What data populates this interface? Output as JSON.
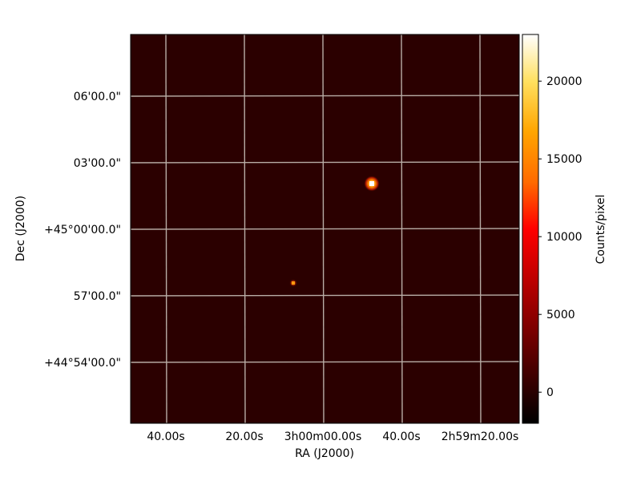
{
  "chart_data": {
    "type": "heatmap",
    "title": "",
    "xlabel": "RA (J2000)",
    "ylabel": "Dec (J2000)",
    "x_tick_labels": [
      "40.00s",
      "20.00s",
      "3h00m00.00s",
      "40.00s",
      "2h59m20.00s"
    ],
    "y_tick_labels": [
      "06'00.0\"",
      "03'00.0\"",
      "+45°00'00.0\"",
      "57'00.0\"",
      "+44°54'00.0\""
    ],
    "x_range": [
      "3h00m49s",
      "2h59m11s"
    ],
    "y_range": [
      "+44°51'20\"",
      "+45°08'45\""
    ],
    "background_level": 650,
    "sources": [
      {
        "ra": "2h59m47.1s",
        "dec": "+45°02'03\"",
        "peak": 21500
      },
      {
        "ra": "3h00m07.0s",
        "dec": "+44°57'33\"",
        "peak": 7500
      }
    ],
    "colorbar": {
      "label": "Counts/pixel",
      "range": [
        -2000,
        23000
      ],
      "ticks": [
        0,
        5000,
        10000,
        15000,
        20000
      ],
      "tick_labels": [
        "0",
        "5000",
        "10000",
        "15000",
        "20000"
      ],
      "colormap": "afmhot"
    },
    "grid": true,
    "grid_color": "#c8c0b8",
    "background_color": "#2b0000"
  }
}
